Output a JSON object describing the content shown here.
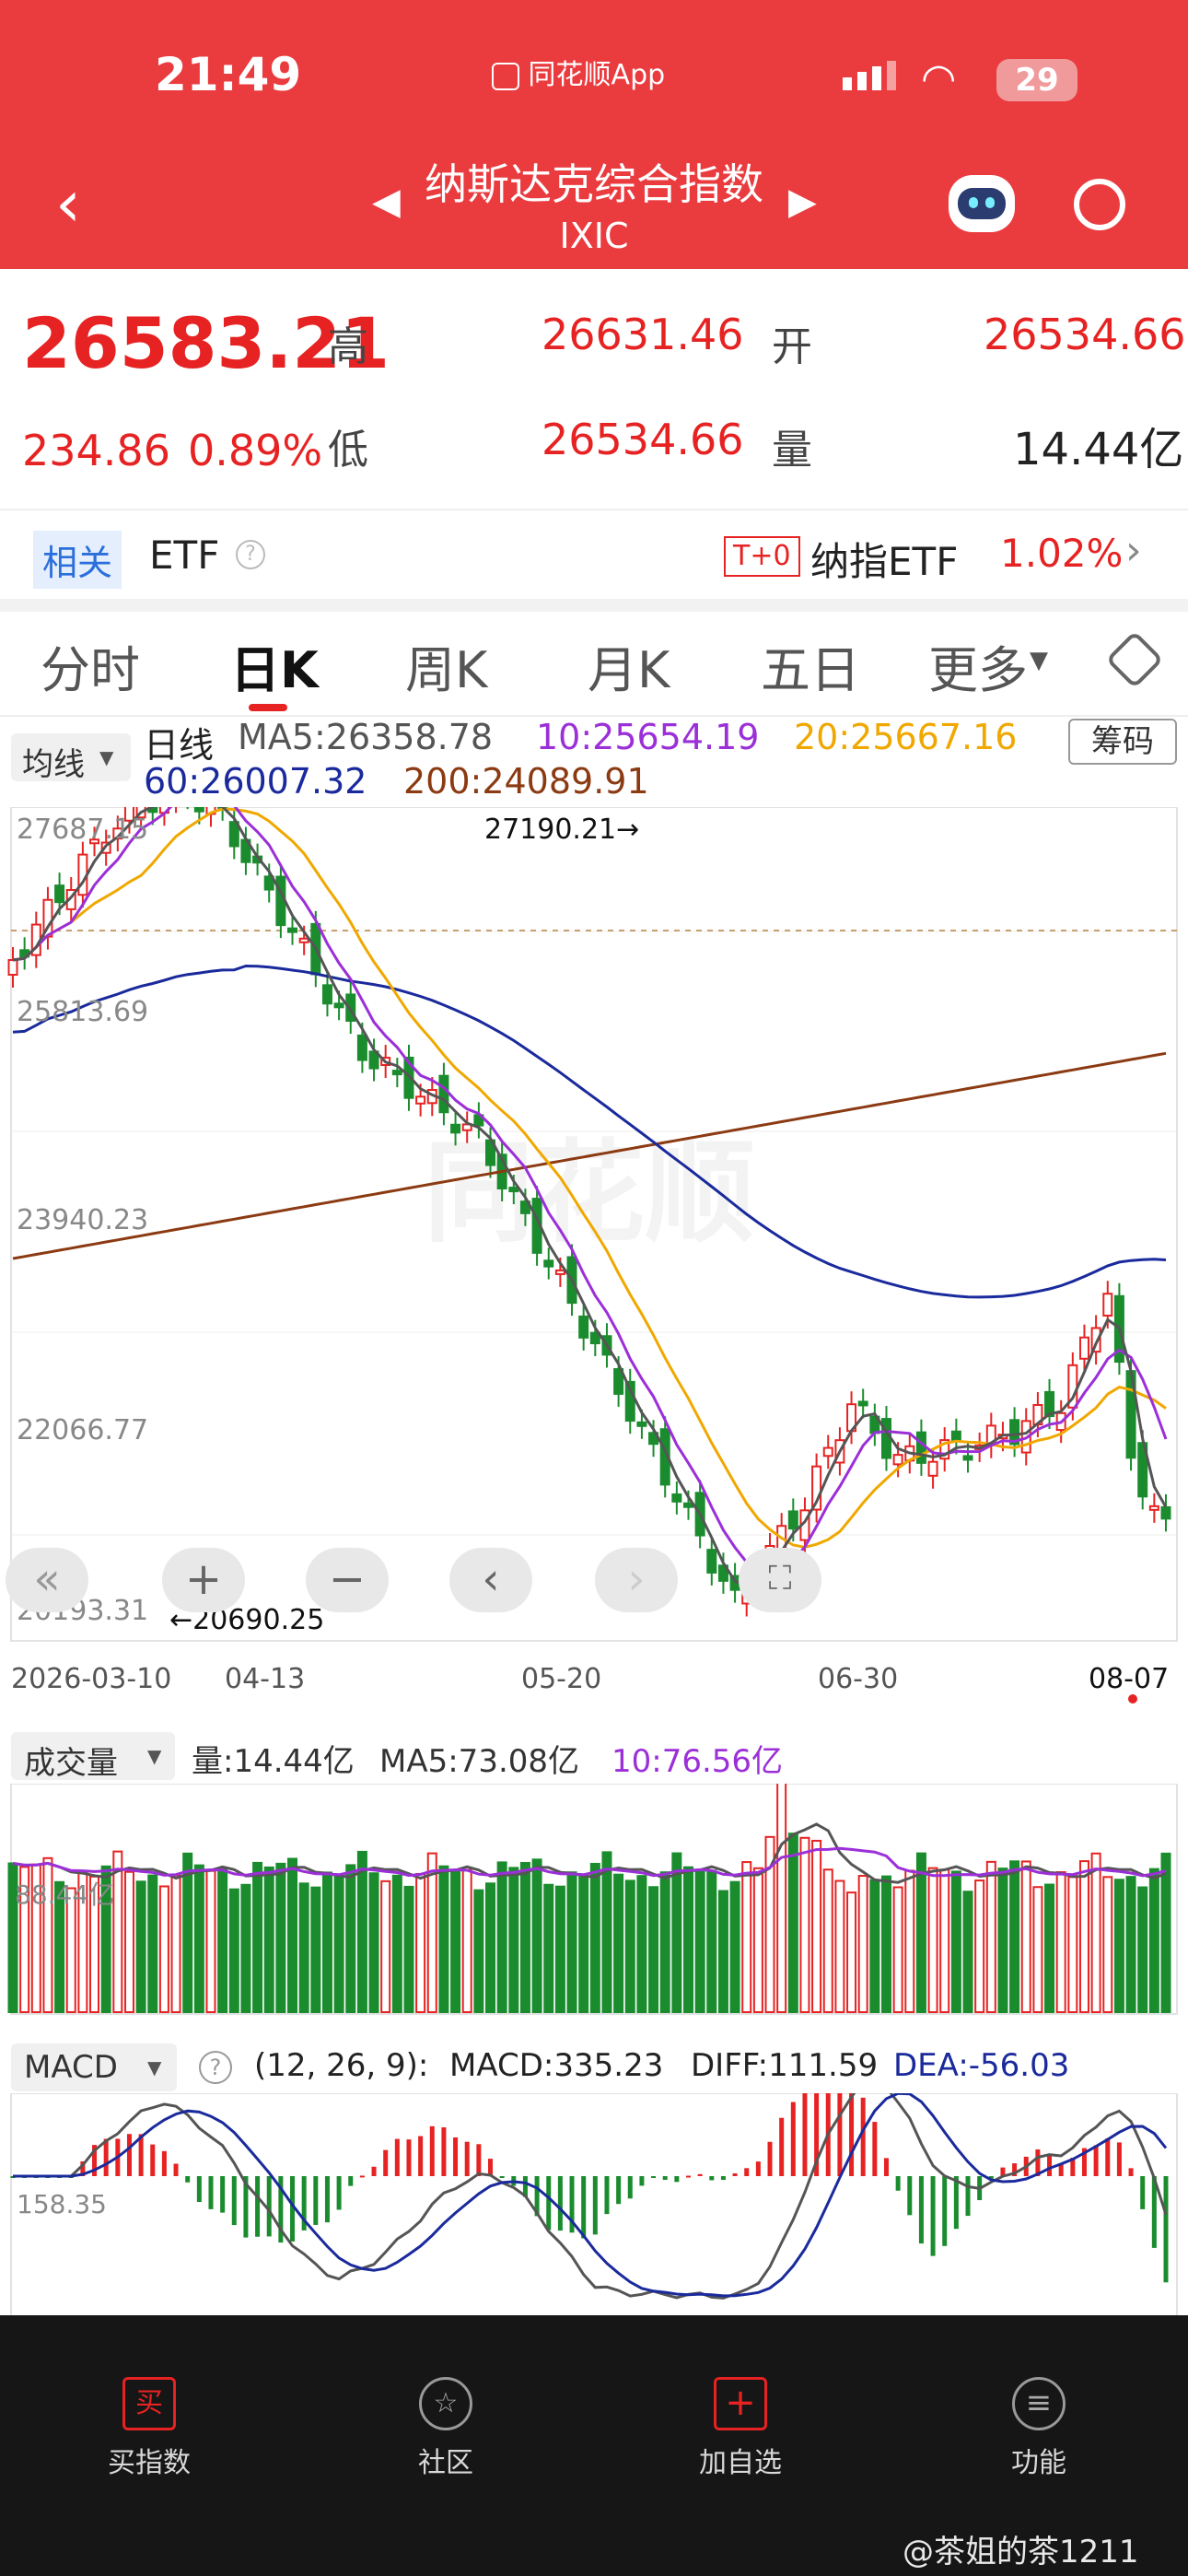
{
  "status_bar": {
    "time": "21:49",
    "source_app": "同花顺App",
    "battery": "29"
  },
  "header": {
    "title": "纳斯达克综合指数",
    "code": "IXIC"
  },
  "quote": {
    "price": "26583.21",
    "change": "234.86",
    "change_pct": "0.89%",
    "high_label": "高",
    "high": "26631.46",
    "open_label": "开",
    "open": "26534.66",
    "low_label": "低",
    "low": "26534.66",
    "volume_label": "量",
    "volume": "14.44亿"
  },
  "related": {
    "tag": "相关",
    "etf_label": "ETF",
    "t0_badge": "T+0",
    "etf_name": "纳指ETF",
    "etf_change": "1.02%"
  },
  "tabs": [
    "分时",
    "日K",
    "周K",
    "月K",
    "五日",
    "更多"
  ],
  "ma_legend": {
    "selector": "均线",
    "period": "日线",
    "ma5": "MA5:26358.78",
    "ma10": "10:25654.19",
    "ma20": "20:25667.16",
    "ma60": "60:26007.32",
    "ma200": "200:24089.91",
    "chip_button": "筹码"
  },
  "kline": {
    "y_labels": [
      "27687.15",
      "25813.69",
      "23940.23",
      "22066.77",
      "20193.31"
    ],
    "high_marker": "27190.21→",
    "low_marker": "←20690.25",
    "x_labels": [
      "2026-03-10",
      "04-13",
      "05-20",
      "06-30",
      "08-07"
    ]
  },
  "volume_panel": {
    "selector": "成交量",
    "vol": "量:14.44亿",
    "ma5": "MA5:73.08亿",
    "ma10": "10:76.56亿",
    "y_label": "88.44亿"
  },
  "macd_panel": {
    "selector": "MACD",
    "params": "(12, 26, 9):",
    "macd": "MACD:335.23",
    "diff": "DIFF:111.59",
    "dea": "DEA:-56.03",
    "y_label": "158.35"
  },
  "bottom_nav": [
    "买指数",
    "社区",
    "加自选",
    "功能"
  ],
  "watermark": "@茶姐的茶1211",
  "colors": {
    "header_red": "#ea3b3f",
    "up": "#e62222",
    "down": "#1a8c2e",
    "ma5": "#555555",
    "ma10": "#9b2fd8",
    "ma20": "#f0a800",
    "ma60": "#1a2a9c",
    "ma200": "#8b3a12"
  }
}
